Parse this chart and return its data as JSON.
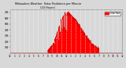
{
  "bg_color": "#d8d8d8",
  "fill_color": "#ff0000",
  "line_color": "#dd0000",
  "legend_color": "#ff0000",
  "xlim": [
    0,
    1440
  ],
  "ylim": [
    0,
    750
  ],
  "grid_color": "#ffffff",
  "tick_label_color": "#000000",
  "x_ticks": [
    0,
    60,
    120,
    180,
    240,
    300,
    360,
    420,
    480,
    540,
    600,
    660,
    720,
    780,
    840,
    900,
    960,
    1020,
    1080,
    1140,
    1200,
    1260,
    1320,
    1380,
    1440
  ],
  "x_tick_labels": [
    "12",
    "1",
    "2",
    "3",
    "4",
    "5",
    "6",
    "7",
    "8",
    "9",
    "10",
    "11",
    "12",
    "1",
    "2",
    "3",
    "4",
    "5",
    "6",
    "7",
    "8",
    "9",
    "10",
    "11",
    "12"
  ],
  "yticks": [
    100,
    200,
    300,
    400,
    500,
    600,
    700
  ],
  "peak_minute": 720,
  "peak_value": 680,
  "rise_start": 480,
  "set_end": 1140
}
